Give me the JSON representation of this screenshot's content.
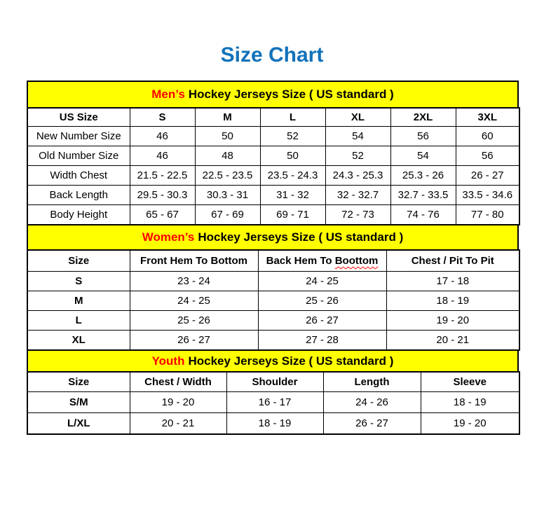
{
  "page": {
    "title": "Size Chart"
  },
  "colors": {
    "title_blue": "#1172ba",
    "section_background": "#ffff00",
    "highlight_red": "#ff0000",
    "border_black": "#000000"
  },
  "sections": [
    {
      "id": "mens-sizes",
      "title_highlight": "Men’s",
      "title_rest": "Hockey Jerseys Size ( US standard )",
      "table": {
        "headers": [
          "US Size",
          "S",
          "M",
          "L",
          "XL",
          "2XL",
          "3XL"
        ],
        "rows": [
          [
            "New Number Size",
            "46",
            "50",
            "52",
            "54",
            "56",
            "60"
          ],
          [
            "Old Number Size",
            "46",
            "48",
            "50",
            "52",
            "54",
            "56"
          ],
          [
            "Width Chest",
            "21.5 - 22.5",
            "22.5 - 23.5",
            "23.5 - 24.3",
            "24.3 - 25.3",
            "25.3 - 26",
            "26 - 27"
          ],
          [
            "Back Length",
            "29.5 - 30.3",
            "30.3 - 31",
            "31 - 32",
            "32 - 32.7",
            "32.7 - 33.5",
            "33.5 - 34.6"
          ],
          [
            "Body Height",
            "65 - 67",
            "67 - 69",
            "69 - 71",
            "72 - 73",
            "74 - 76",
            "77 - 80"
          ]
        ],
        "bold_row_labels": false
      }
    },
    {
      "id": "womens-sizes",
      "title_highlight": "Women’s",
      "title_rest": "Hockey Jerseys Size ( US standard )",
      "table": {
        "headers": [
          "Size",
          "Front Hem To Bottom",
          "Back Hem To Boottom",
          "Chest / Pit To Pit"
        ],
        "squiggle": {
          "index": 2,
          "word": "Boottom"
        },
        "rows": [
          [
            "S",
            "23 - 24",
            "24 - 25",
            "17 - 18"
          ],
          [
            "M",
            "24 - 25",
            "25 - 26",
            "18 - 19"
          ],
          [
            "L",
            "25 - 26",
            "26 - 27",
            "19 - 20"
          ],
          [
            "XL",
            "26 - 27",
            "27 - 28",
            "20 - 21"
          ]
        ],
        "bold_row_labels": true
      }
    },
    {
      "id": "youth-sizes",
      "title_highlight": "Youth",
      "title_rest": "Hockey Jerseys Size ( US standard )",
      "table": {
        "headers": [
          "Size",
          "Chest / Width",
          "Shoulder",
          "Length",
          "Sleeve"
        ],
        "rows": [
          [
            "S/M",
            "19 - 20",
            "16 - 17",
            "24 - 26",
            "18 - 19"
          ],
          [
            "L/XL",
            "20 - 21",
            "18 - 19",
            "26 - 27",
            "19 - 20"
          ]
        ],
        "bold_row_labels": true
      }
    }
  ]
}
